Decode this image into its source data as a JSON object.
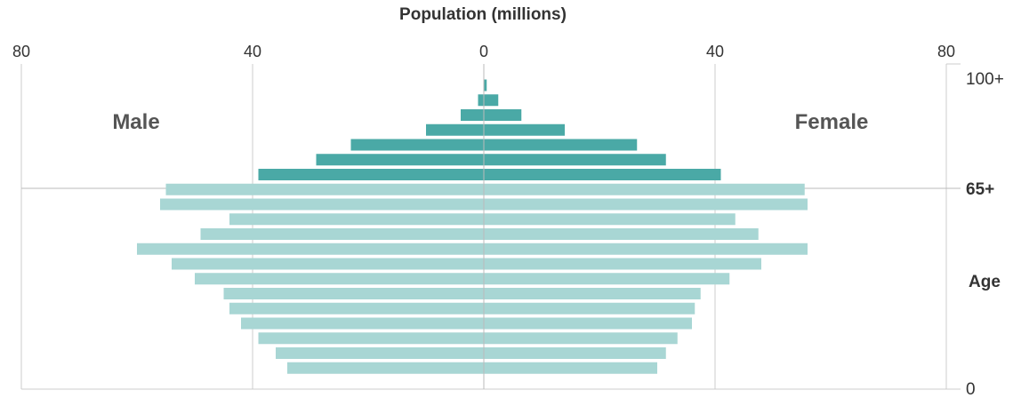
{
  "chart_data": {
    "type": "bar",
    "title": "Population (millions)",
    "orientation": "horizontal-pyramid",
    "x_ticks": [
      "80",
      "40",
      "0",
      "40",
      "80"
    ],
    "x_range": [
      -80,
      80
    ],
    "y_label": "Age",
    "age_ticks": [
      {
        "label": "100+",
        "bold": false
      },
      {
        "label": "65+",
        "bold": true
      },
      {
        "label": "Age",
        "bold": true
      },
      {
        "label": "0",
        "bold": false
      }
    ],
    "groups": {
      "male": "Male",
      "female": "Female"
    },
    "colors": {
      "over65": "#4aa9a6",
      "under65": "#a8d6d4",
      "grid": "#cccccc",
      "reference": "#bbbbbb"
    },
    "series": [
      {
        "name": "Male",
        "values": [
          0,
          1,
          4,
          10,
          23,
          29,
          39,
          55,
          56,
          44,
          49,
          60,
          54,
          50,
          45,
          44,
          42,
          39,
          36,
          34
        ]
      },
      {
        "name": "Female",
        "values": [
          0.5,
          2.5,
          6.5,
          14,
          26.5,
          31.5,
          41,
          55.5,
          56,
          43.5,
          47.5,
          56,
          48,
          42.5,
          37.5,
          36.5,
          36,
          33.5,
          31.5,
          30
        ]
      }
    ]
  }
}
